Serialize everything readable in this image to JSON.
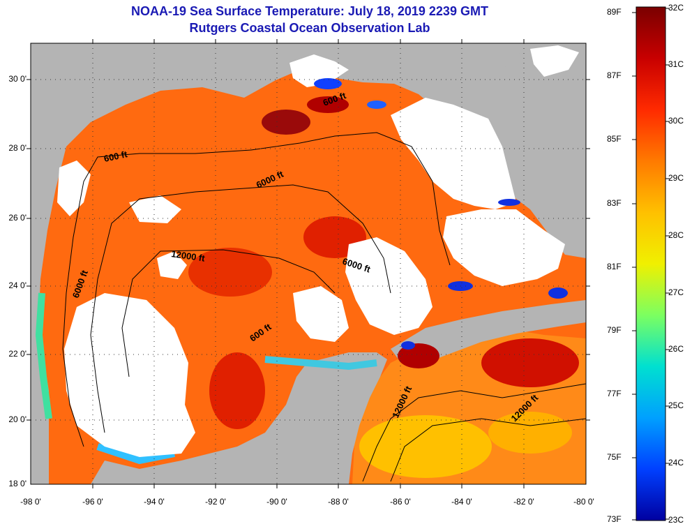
{
  "title": {
    "line1": "NOAA-19 Sea Surface Temperature:  July 18, 2019 2239 GMT",
    "line2": "Rutgers Coastal Ocean Observation Lab"
  },
  "latitude_labels": [
    "30 0'",
    "28 0'",
    "26 0'",
    "24 0'",
    "22 0'",
    "20 0'",
    "18 0'"
  ],
  "longitude_labels": [
    "-98 0'",
    "-96 0'",
    "-94 0'",
    "-92 0'",
    "-90 0'",
    "-88 0'",
    "-86 0'",
    "-84 0'",
    "-82 0'",
    "-80 0'"
  ],
  "colorbar": {
    "fahrenheit_labels": [
      "89F",
      "87F",
      "85F",
      "83F",
      "81F",
      "79F",
      "77F",
      "75F",
      "73F"
    ],
    "celsius_labels": [
      "32C",
      "31C",
      "30C",
      "29C",
      "28C",
      "27C",
      "26C",
      "25C",
      "24C",
      "23C"
    ],
    "gradient_colors": [
      "#7a0000",
      "#c80000",
      "#ff2a00",
      "#ff7a00",
      "#ffc000",
      "#f0f000",
      "#7cff60",
      "#00e0d0",
      "#00a0ff",
      "#0040ff",
      "#0000a0"
    ]
  },
  "contour_labels": [
    "600 ft",
    "6000 ft",
    "600 ft",
    "12000 ft",
    "6000 ft",
    "6000 ft",
    "600 ft",
    "12000 ft",
    "12000 ft"
  ],
  "colors": {
    "title": "#1a1ab4",
    "land": "#b4b4b4",
    "cloud": "#ffffff",
    "background": "#ffffff"
  }
}
